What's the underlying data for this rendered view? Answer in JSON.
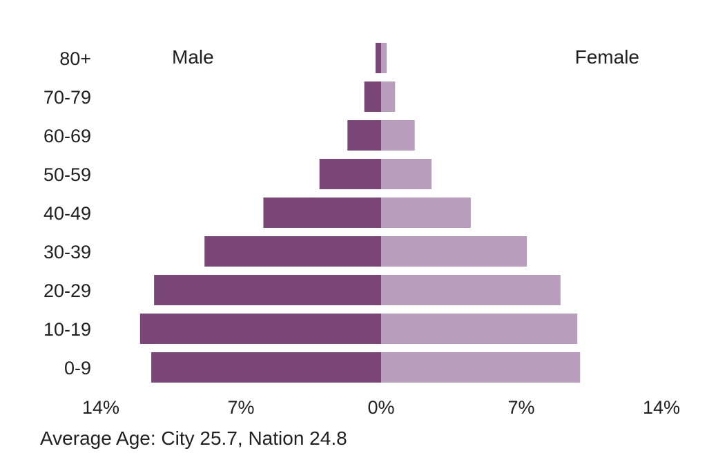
{
  "chart_data": {
    "type": "bar",
    "orientation": "horizontal-diverging",
    "categories": [
      "80+",
      "70-79",
      "60-69",
      "50-59",
      "40-49",
      "30-39",
      "20-29",
      "10-19",
      "0-9"
    ],
    "series": [
      {
        "name": "Male",
        "values": [
          0.2,
          0.6,
          1.2,
          2.2,
          4.2,
          6.3,
          8.1,
          8.6,
          8.2
        ]
      },
      {
        "name": "Female",
        "values": [
          0.2,
          0.5,
          1.2,
          1.8,
          3.2,
          5.2,
          6.4,
          7.0,
          7.1
        ]
      }
    ],
    "xlim": [
      -10,
      10
    ],
    "ticks": [
      {
        "value": -10,
        "label": "14%"
      },
      {
        "value": -5,
        "label": "7%"
      },
      {
        "value": 0,
        "label": "0%"
      },
      {
        "value": 5,
        "label": "7%"
      },
      {
        "value": 10,
        "label": "14%"
      }
    ],
    "colors": {
      "Male": "#7a4678",
      "Female": "#b89ebc"
    },
    "note": "Average Age: City 25.7, Nation 24.8"
  }
}
